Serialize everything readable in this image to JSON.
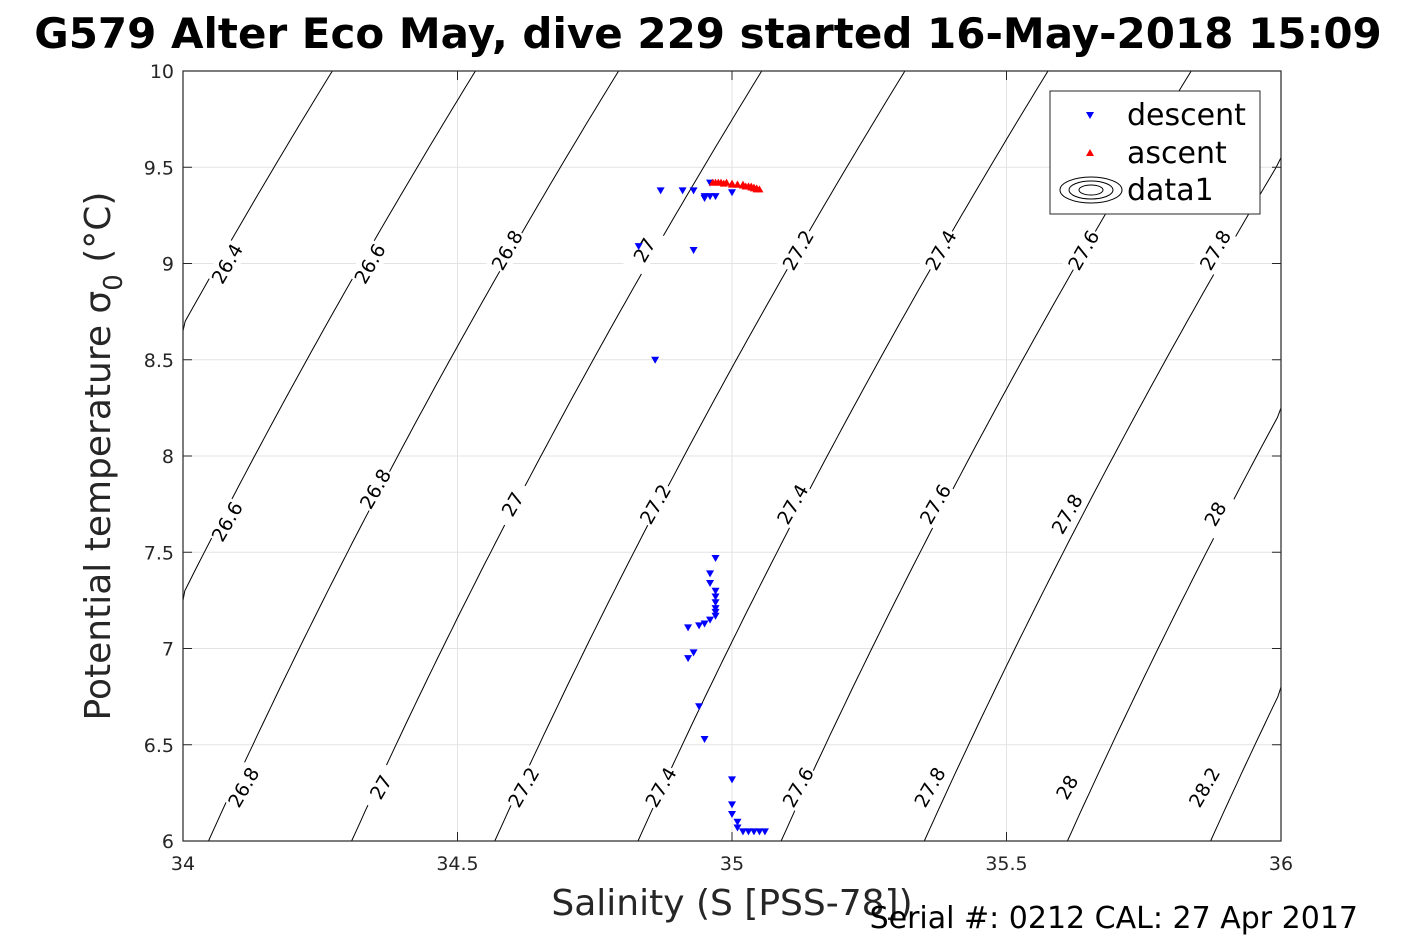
{
  "figure": {
    "title": "G579 Alter Eco May, dive 229 started 16-May-2018 15:09",
    "footer": "Serial #: 0212  CAL: 27 Apr 2017"
  },
  "chart_data": {
    "type": "scatter",
    "xlabel": "Salinity (S [PSS-78])",
    "ylabel": "Potential temperature σ",
    "ylabel_subscript": "0",
    "ylabel_unit": " (°C)",
    "xlim": [
      34,
      36
    ],
    "ylim": [
      6,
      10
    ],
    "xticks": [
      34,
      34.5,
      35,
      35.5,
      36
    ],
    "xtick_labels": [
      "34",
      "34.5",
      "35",
      "35.5",
      "36"
    ],
    "yticks": [
      6,
      6.5,
      7,
      7.5,
      8,
      8.5,
      9,
      9.5,
      10
    ],
    "ytick_labels": [
      "6",
      "6.5",
      "7",
      "7.5",
      "8",
      "8.5",
      "9",
      "9.5",
      "10"
    ],
    "grid": true,
    "legend_position": "top-right",
    "legend": [
      "descent",
      "ascent",
      "data1"
    ],
    "contours": {
      "levels": [
        26.4,
        26.6,
        26.8,
        27.0,
        27.2,
        27.4,
        27.6,
        27.8,
        28.0,
        28.2
      ],
      "labels": [
        {
          "text": "26.4",
          "x": 34.08,
          "y": 9.0
        },
        {
          "text": "26.6",
          "x": 34.34,
          "y": 9.0
        },
        {
          "text": "26.8",
          "x": 34.59,
          "y": 9.07
        },
        {
          "text": "27",
          "x": 34.84,
          "y": 9.07
        },
        {
          "text": "27.2",
          "x": 35.12,
          "y": 9.07
        },
        {
          "text": "27.4",
          "x": 35.38,
          "y": 9.07
        },
        {
          "text": "27.6",
          "x": 35.64,
          "y": 9.07
        },
        {
          "text": "27.8",
          "x": 35.88,
          "y": 9.07
        },
        {
          "text": "26.6",
          "x": 34.08,
          "y": 7.66
        },
        {
          "text": "26.8",
          "x": 34.35,
          "y": 7.83
        },
        {
          "text": "27",
          "x": 34.6,
          "y": 7.75
        },
        {
          "text": "27.2",
          "x": 34.86,
          "y": 7.75
        },
        {
          "text": "27.4",
          "x": 35.11,
          "y": 7.75
        },
        {
          "text": "27.6",
          "x": 35.37,
          "y": 7.75
        },
        {
          "text": "27.8",
          "x": 35.61,
          "y": 7.7
        },
        {
          "text": "28",
          "x": 35.88,
          "y": 7.7
        },
        {
          "text": "26.8",
          "x": 34.11,
          "y": 6.28
        },
        {
          "text": "27",
          "x": 34.36,
          "y": 6.28
        },
        {
          "text": "27.2",
          "x": 34.62,
          "y": 6.28
        },
        {
          "text": "27.4",
          "x": 34.87,
          "y": 6.28
        },
        {
          "text": "27.6",
          "x": 35.12,
          "y": 6.28
        },
        {
          "text": "27.8",
          "x": 35.36,
          "y": 6.28
        },
        {
          "text": "28",
          "x": 35.61,
          "y": 6.28
        },
        {
          "text": "28.2",
          "x": 35.86,
          "y": 6.28
        }
      ]
    },
    "series": [
      {
        "name": "descent",
        "marker": "triangle-down",
        "color": "#0000ff",
        "points": [
          [
            34.87,
            9.38
          ],
          [
            34.93,
            9.38
          ],
          [
            34.91,
            9.38
          ],
          [
            34.95,
            9.35
          ],
          [
            34.95,
            9.34
          ],
          [
            34.96,
            9.35
          ],
          [
            34.97,
            9.35
          ],
          [
            35.0,
            9.37
          ],
          [
            34.96,
            9.42
          ],
          [
            34.83,
            9.09
          ],
          [
            34.93,
            9.07
          ],
          [
            34.86,
            8.5
          ],
          [
            34.97,
            7.47
          ],
          [
            34.96,
            7.39
          ],
          [
            34.96,
            7.34
          ],
          [
            34.97,
            7.3
          ],
          [
            34.97,
            7.27
          ],
          [
            34.97,
            7.24
          ],
          [
            34.97,
            7.21
          ],
          [
            34.97,
            7.19
          ],
          [
            34.97,
            7.17
          ],
          [
            34.96,
            7.15
          ],
          [
            34.95,
            7.13
          ],
          [
            34.94,
            7.12
          ],
          [
            34.92,
            7.11
          ],
          [
            34.93,
            6.98
          ],
          [
            34.92,
            6.95
          ],
          [
            34.94,
            6.7
          ],
          [
            34.95,
            6.53
          ],
          [
            35.0,
            6.32
          ],
          [
            35.0,
            6.19
          ],
          [
            35.0,
            6.14
          ],
          [
            35.01,
            6.1
          ],
          [
            35.01,
            6.07
          ],
          [
            35.02,
            6.05
          ],
          [
            35.03,
            6.05
          ],
          [
            35.04,
            6.05
          ],
          [
            35.05,
            6.05
          ],
          [
            35.06,
            6.05
          ]
        ]
      },
      {
        "name": "ascent",
        "marker": "triangle-up",
        "color": "#ff0000",
        "points": [
          [
            34.97,
            9.42
          ],
          [
            34.98,
            9.42
          ],
          [
            34.99,
            9.42
          ],
          [
            35.0,
            9.41
          ],
          [
            35.01,
            9.41
          ],
          [
            35.02,
            9.41
          ],
          [
            35.03,
            9.4
          ],
          [
            35.035,
            9.4
          ],
          [
            35.04,
            9.395
          ],
          [
            35.045,
            9.39
          ],
          [
            35.05,
            9.385
          ],
          [
            35.04,
            9.39
          ],
          [
            35.03,
            9.4
          ],
          [
            35.02,
            9.405
          ],
          [
            35.01,
            9.41
          ],
          [
            35.0,
            9.415
          ],
          [
            34.985,
            9.415
          ],
          [
            34.975,
            9.42
          ],
          [
            34.965,
            9.42
          ],
          [
            35.035,
            9.395
          ],
          [
            35.045,
            9.385
          ],
          [
            35.025,
            9.4
          ]
        ]
      }
    ]
  }
}
